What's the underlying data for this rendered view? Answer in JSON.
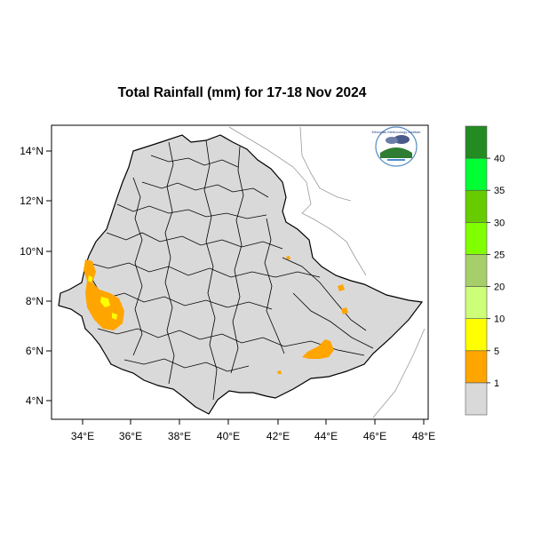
{
  "title": "Total Rainfall (mm) for 17-18 Nov 2024",
  "map": {
    "lat_ticks": [
      "14°N",
      "12°N",
      "10°N",
      "8°N",
      "6°N",
      "4°N"
    ],
    "lon_ticks": [
      "34°E",
      "36°E",
      "38°E",
      "40°E",
      "42°E",
      "44°E",
      "46°E",
      "48°E"
    ],
    "land_color": "#d9d9d9",
    "rain_color": "#ffa500",
    "logo_text": "Ethiopian Meteorology Institute"
  },
  "legend": {
    "labels": [
      "1",
      "5",
      "10",
      "20",
      "25",
      "30",
      "35",
      "40"
    ],
    "colors": [
      "#d9d9d9",
      "#ffa500",
      "#ffff00",
      "#ccff77",
      "#a6cf6a",
      "#80ff00",
      "#66cc00",
      "#00ff33",
      "#228b22"
    ]
  }
}
